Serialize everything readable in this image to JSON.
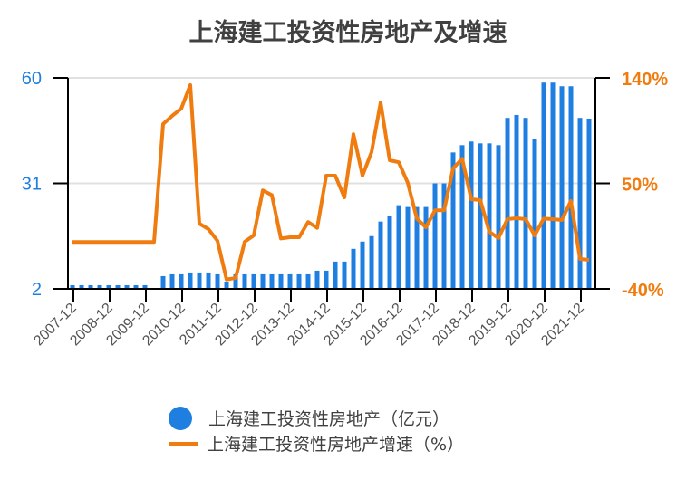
{
  "chart_data": {
    "type": "bar+line",
    "title": "上海建工投资性房地产及增速",
    "colors": {
      "bar": "#1f7fe0",
      "line": "#f07c10",
      "left_axis_text": "#1f7fe0",
      "right_axis_text": "#f07c10"
    },
    "x_tick_labels": [
      "2007-12",
      "2008-12",
      "2009-12",
      "2010-12",
      "2011-12",
      "2012-12",
      "2013-12",
      "2014-12",
      "2015-12",
      "2016-12",
      "2017-12",
      "2018-12",
      "2019-12",
      "2020-12",
      "2021-12"
    ],
    "categories": [
      "2007-12",
      "2008-03",
      "2008-06",
      "2008-09",
      "2008-12",
      "2009-03",
      "2009-06",
      "2009-09",
      "2009-12",
      "2010-03",
      "2010-06",
      "2010-09",
      "2010-12",
      "2011-03",
      "2011-06",
      "2011-09",
      "2011-12",
      "2012-03",
      "2012-06",
      "2012-09",
      "2012-12",
      "2013-03",
      "2013-06",
      "2013-09",
      "2013-12",
      "2014-03",
      "2014-06",
      "2014-09",
      "2014-12",
      "2015-03",
      "2015-06",
      "2015-09",
      "2015-12",
      "2016-03",
      "2016-06",
      "2016-09",
      "2016-12",
      "2017-03",
      "2017-06",
      "2017-09",
      "2017-12",
      "2018-03",
      "2018-06",
      "2018-09",
      "2018-12",
      "2019-03",
      "2019-06",
      "2019-09",
      "2019-12",
      "2020-03",
      "2020-06",
      "2020-09",
      "2020-12",
      "2021-03",
      "2021-06",
      "2021-09",
      "2021-12",
      "2022-03"
    ],
    "left_axis": {
      "ticks": [
        "2",
        "31",
        "60"
      ],
      "range": [
        2,
        60
      ]
    },
    "right_axis": {
      "ticks": [
        "-40%",
        "50%",
        "140%"
      ],
      "range": [
        -40,
        140
      ]
    },
    "grid": true,
    "legend_position": "bottom",
    "series": [
      {
        "name": "上海建工投资性房地产（亿元）",
        "type": "bar",
        "axis": "left",
        "values": [
          3,
          3,
          3,
          3,
          3,
          3,
          3,
          3,
          3,
          2,
          5.5,
          6,
          6,
          6.5,
          6.5,
          6.5,
          6,
          4,
          6,
          6,
          6,
          6,
          6,
          6,
          6,
          6,
          6,
          7,
          7,
          9.5,
          9.5,
          13,
          15,
          16.5,
          20.5,
          22,
          25,
          24.5,
          24.5,
          24.5,
          31,
          31,
          39.5,
          41.5,
          42.5,
          42,
          42,
          41.5,
          49,
          49.8,
          49,
          43.3,
          58.7,
          58.7,
          57.7,
          57.7,
          49,
          48.8
        ]
      },
      {
        "name": "上海建工投资性房地产增速（%）",
        "type": "line",
        "axis": "right",
        "values": [
          0,
          0,
          0,
          0,
          0,
          0,
          0,
          0,
          0,
          0,
          100.6,
          107.6,
          113.8,
          133.9,
          15.6,
          11,
          1,
          -32,
          -30.7,
          0.2,
          5.6,
          44,
          40,
          3,
          4,
          4,
          17,
          12,
          56.6,
          56.6,
          38,
          92,
          56.6,
          76.7,
          119,
          69.7,
          68,
          50.4,
          20,
          12.5,
          27,
          27,
          62.8,
          71,
          36.5,
          35.7,
          8.7,
          3.3,
          19.5,
          20.3,
          19.5,
          5.6,
          20,
          19.5,
          18.7,
          35,
          -14.5,
          -15.3
        ]
      }
    ]
  }
}
